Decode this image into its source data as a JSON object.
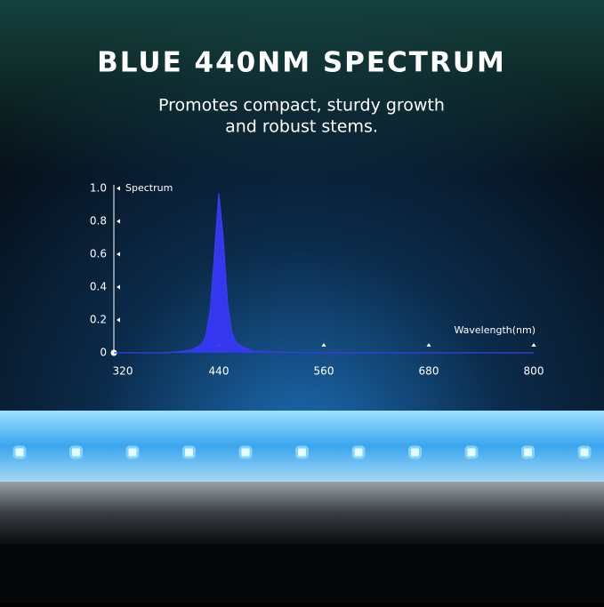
{
  "chart_data": {
    "type": "area",
    "title": "BLUE 440NM SPECTRUM",
    "subtitle": [
      "Promotes compact, sturdy growth",
      "and robust stems."
    ],
    "y_label": "Spectrum",
    "x_label": "Wavelength(nm)",
    "color": "#3b3cf0",
    "x": [
      320,
      380,
      400,
      410,
      420,
      425,
      430,
      435,
      440,
      445,
      450,
      455,
      460,
      470,
      480,
      500,
      550,
      600,
      700,
      800
    ],
    "values": [
      0,
      0,
      0.01,
      0.02,
      0.05,
      0.1,
      0.25,
      0.6,
      0.97,
      0.7,
      0.3,
      0.12,
      0.06,
      0.03,
      0.01,
      0.005,
      0,
      0,
      0,
      0
    ],
    "xlim": [
      320,
      800
    ],
    "xticks": [
      320,
      440,
      560,
      680,
      800
    ],
    "ylim": [
      0,
      1
    ],
    "yticks": [
      0,
      0.2,
      0.4,
      0.6,
      0.8,
      {
        "value": 1,
        "label": "1.0"
      }
    ]
  }
}
